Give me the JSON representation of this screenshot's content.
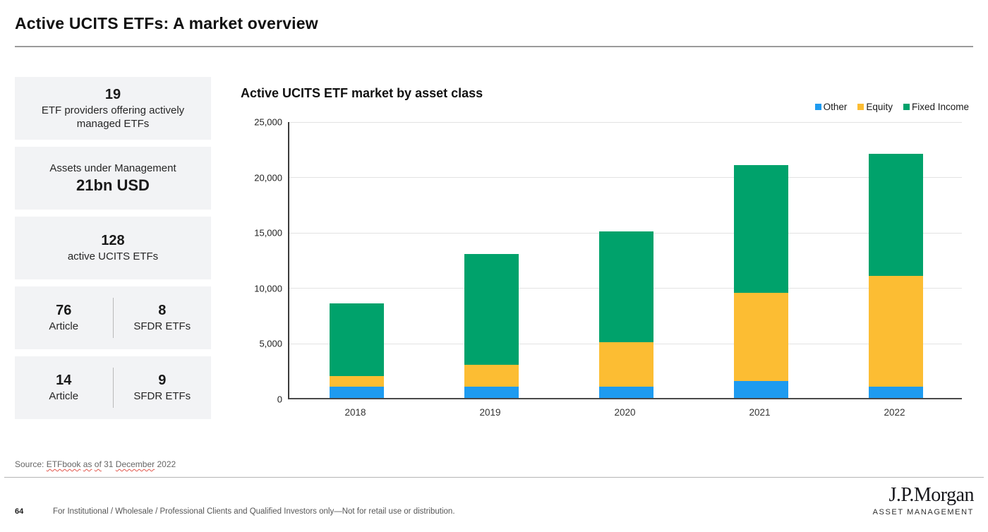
{
  "page": {
    "title": "Active UCITS ETFs: A market overview",
    "footer": {
      "page_number": "64",
      "disclaimer": "For Institutional / Wholesale / Professional Clients and Qualified Investors only—Not for retail use or distribution."
    },
    "logo": {
      "line1": "J.P.Morgan",
      "line2": "ASSET MANAGEMENT"
    }
  },
  "stats": {
    "providers": {
      "value": "19",
      "label": "ETF providers offering actively managed ETFs"
    },
    "aum": {
      "label": "Assets under Management",
      "value": "21bn USD"
    },
    "active_etfs": {
      "value": "128",
      "label": "active UCITS ETFs"
    },
    "article8": {
      "value": "76",
      "label": "Article",
      "right_value": "8",
      "right_label": "SFDR ETFs"
    },
    "article9": {
      "value": "14",
      "label": "Article",
      "right_value": "9",
      "right_label": "SFDR ETFs"
    }
  },
  "source": {
    "segments": [
      {
        "text": "Source: ",
        "squiggle": false
      },
      {
        "text": "ETFbook",
        "squiggle": true
      },
      {
        "text": " ",
        "squiggle": false
      },
      {
        "text": "as",
        "squiggle": true
      },
      {
        "text": " ",
        "squiggle": false
      },
      {
        "text": "of",
        "squiggle": true
      },
      {
        "text": " 31 ",
        "squiggle": false
      },
      {
        "text": "December",
        "squiggle": true
      },
      {
        "text": " 2022",
        "squiggle": false
      }
    ]
  },
  "chart_data": {
    "type": "bar",
    "stacked": true,
    "title": "Active UCITS ETF market by asset class",
    "categories": [
      "2018",
      "2019",
      "2020",
      "2021",
      "2022"
    ],
    "series": [
      {
        "name": "Other",
        "color": "#1E9BF0",
        "values": [
          1000,
          1000,
          1000,
          1500,
          1000
        ]
      },
      {
        "name": "Equity",
        "color": "#FCBD33",
        "values": [
          1000,
          2000,
          4000,
          8000,
          10000
        ]
      },
      {
        "name": "Fixed Income",
        "color": "#00A26B",
        "values": [
          6500,
          10000,
          10000,
          11500,
          11000
        ]
      }
    ],
    "totals": [
      8500,
      13000,
      15000,
      21000,
      22000
    ],
    "ylim": [
      0,
      25000
    ],
    "ytick_step": 5000,
    "ytick_labels": [
      "0",
      "5,000",
      "10,000",
      "15,000",
      "20,000",
      "25,000"
    ],
    "legend_position": "top-right",
    "grid": true
  }
}
